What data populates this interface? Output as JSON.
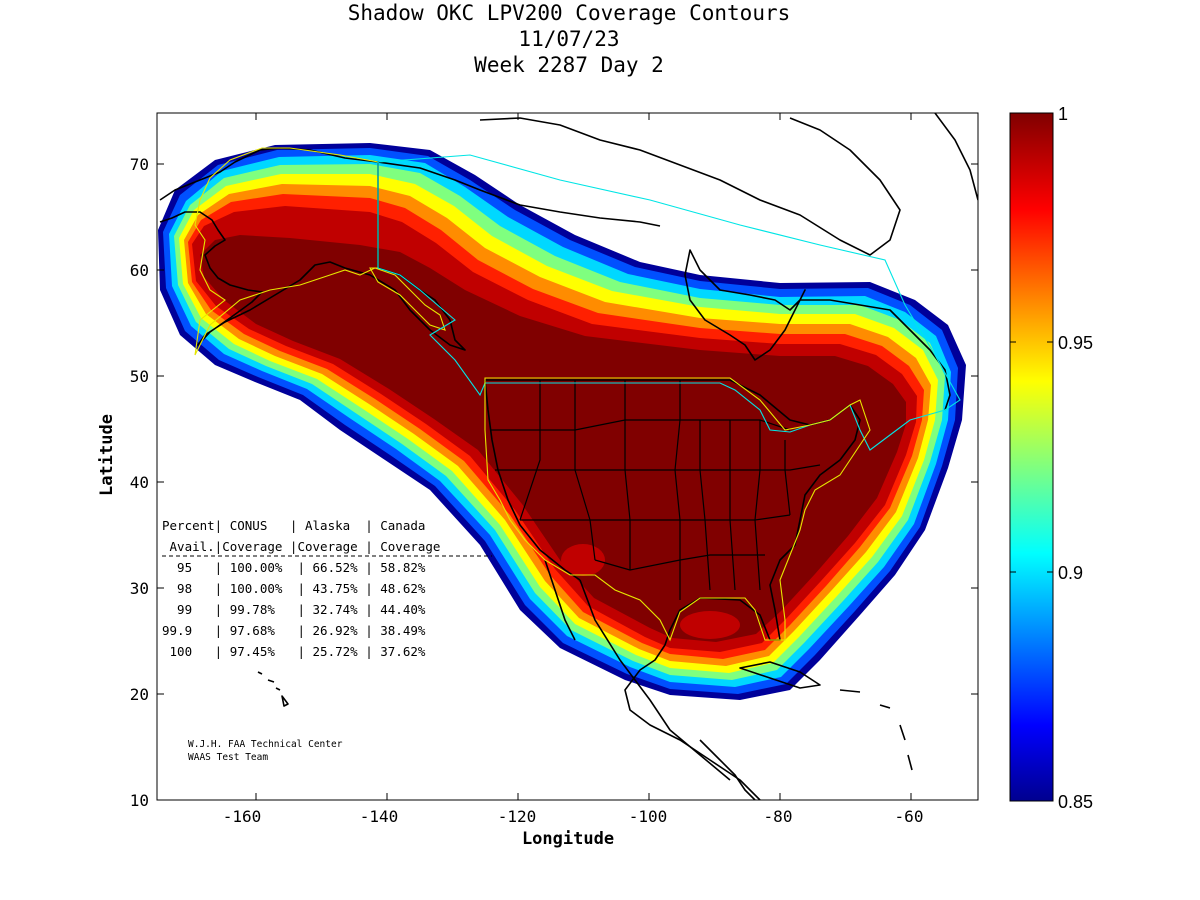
{
  "title": {
    "line1": "Shadow OKC LPV200 Coverage Contours",
    "line2": "11/07/23",
    "line3": "Week 2287 Day 2"
  },
  "axes": {
    "xlabel": "Longitude",
    "ylabel": "Latitude",
    "xticks": [
      "-160",
      "-140",
      "-120",
      "-100",
      "-80",
      "-60"
    ],
    "yticks": [
      "10",
      "20",
      "30",
      "40",
      "50",
      "60",
      "70"
    ],
    "xlim": [
      -175,
      -50
    ],
    "ylim": [
      10,
      75
    ]
  },
  "colorbar": {
    "ticks": [
      "1",
      "0.95",
      "0.9",
      "0.85"
    ],
    "range": [
      0.85,
      1
    ],
    "colormap": "jet",
    "colors": [
      "#00008f",
      "#0000ff",
      "#00ffff",
      "#ffff00",
      "#ff0000",
      "#800000"
    ]
  },
  "table": {
    "header1": "Percent| CONUS   | Alaska  | Canada",
    "header2": " Avail.|Coverage |Coverage | Coverage",
    "rows": [
      "  95   | 100.00%  | 66.52% | 58.82%",
      "  98   | 100.00%  | 43.75% | 48.62%",
      "  99   | 99.78%   | 32.74% | 44.40%",
      "99.9   | 97.68%   | 26.92% | 38.49%",
      " 100   | 97.45%   | 25.72% | 37.62%"
    ]
  },
  "credit": {
    "line1": "W.J.H. FAA Technical Center",
    "line2": "WAAS Test Team"
  },
  "chart_data": {
    "type": "heatmap",
    "title": "Shadow OKC LPV200 Coverage Contours",
    "xlabel": "Longitude",
    "ylabel": "Latitude",
    "xlim": [
      -175,
      -50
    ],
    "ylim": [
      10,
      75
    ],
    "colorbar_range": [
      0.85,
      1
    ],
    "coverage_table": {
      "columns": [
        "Percent Avail.",
        "CONUS Coverage",
        "Alaska Coverage",
        "Canada Coverage"
      ],
      "rows": [
        [
          "95",
          "100.00%",
          "66.52%",
          "58.82%"
        ],
        [
          "98",
          "100.00%",
          "43.75%",
          "48.62%"
        ],
        [
          "99",
          "99.78%",
          "32.74%",
          "44.40%"
        ],
        [
          "99.9",
          "97.68%",
          "26.92%",
          "38.49%"
        ],
        [
          "100",
          "97.45%",
          "25.72%",
          "37.62%"
        ]
      ]
    }
  }
}
